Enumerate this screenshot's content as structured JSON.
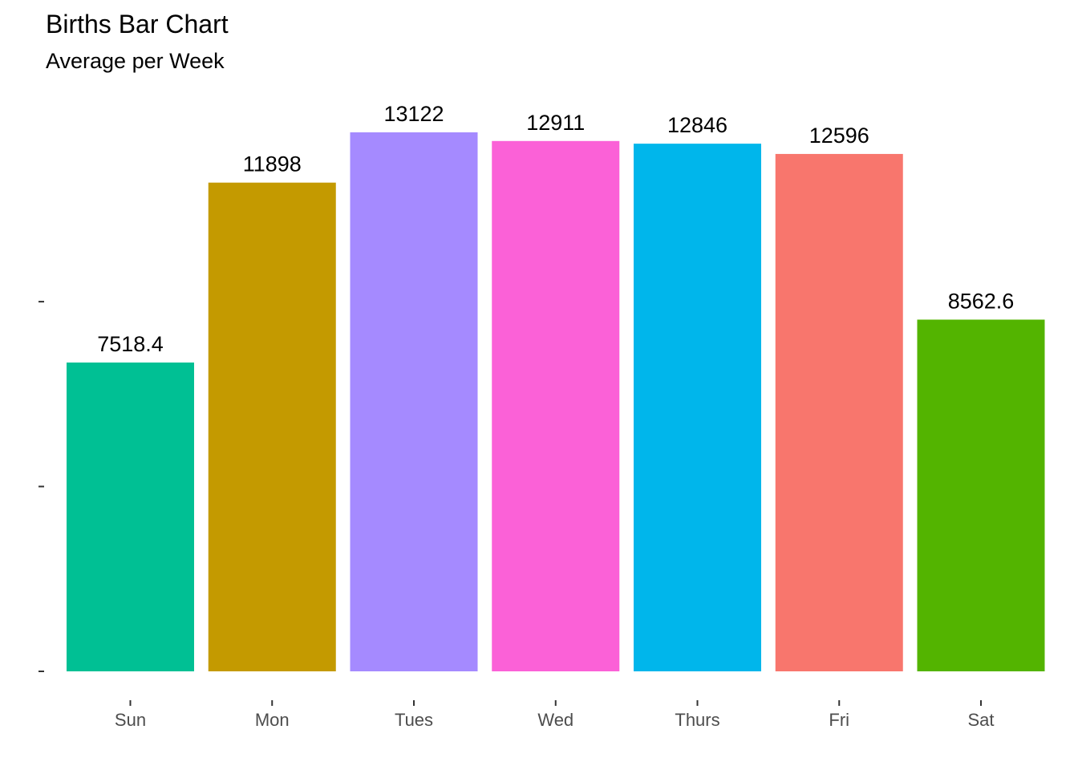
{
  "chart_data": {
    "type": "bar",
    "title": "Births Bar Chart",
    "subtitle": "Average per Week",
    "xlabel": "",
    "ylabel": "",
    "categories": [
      "Sun",
      "Mon",
      "Tues",
      "Wed",
      "Thurs",
      "Fri",
      "Sat"
    ],
    "values": [
      7518.4,
      11898,
      13122,
      12911,
      12846,
      12596,
      8562.6
    ],
    "value_labels": [
      "7518.4",
      "11898",
      "13122",
      "12911",
      "12846",
      "12596",
      "8562.6"
    ],
    "colors": [
      "#00C094",
      "#C49A00",
      "#A58AFF",
      "#FB61D7",
      "#00B6EB",
      "#F8766D",
      "#53B400"
    ],
    "y_ticks": [
      0,
      4500,
      9000
    ],
    "y_tick_labels_visible": false,
    "ylim": [
      0,
      13122
    ],
    "grid": false,
    "legend": "none"
  }
}
